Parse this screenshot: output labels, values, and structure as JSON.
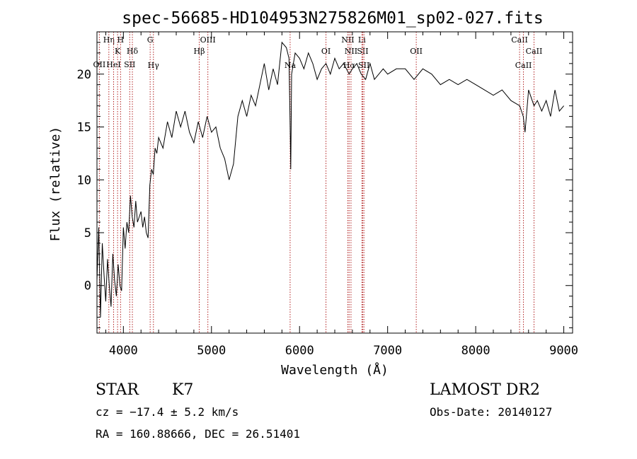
{
  "chart_data": {
    "type": "line",
    "title": "spec-56685-HD104953N275826M01_sp02-027.fits",
    "xlabel": "Wavelength (Å)",
    "ylabel": "Flux (relative)",
    "xlim": [
      3700,
      9100
    ],
    "ylim": [
      -4.5,
      24
    ],
    "xticks": [
      "4000",
      "5000",
      "6000",
      "7000",
      "8000",
      "9000"
    ],
    "xtick_values": [
      4000,
      5000,
      6000,
      7000,
      8000,
      9000
    ],
    "yticks": [
      "0",
      "5",
      "10",
      "15",
      "20"
    ],
    "ytick_values": [
      0,
      5,
      10,
      15,
      20
    ],
    "grid": false,
    "series": [
      {
        "color": "#000000",
        "x": [
          3700,
          3720,
          3740,
          3760,
          3780,
          3800,
          3820,
          3840,
          3860,
          3880,
          3900,
          3920,
          3940,
          3960,
          3980,
          4000,
          4020,
          4040,
          4060,
          4080,
          4100,
          4120,
          4140,
          4160,
          4180,
          4200,
          4220,
          4240,
          4260,
          4280,
          4300,
          4320,
          4340,
          4360,
          4380,
          4400,
          4450,
          4500,
          4550,
          4600,
          4650,
          4700,
          4750,
          4800,
          4850,
          4900,
          4950,
          5000,
          5050,
          5100,
          5150,
          5200,
          5250,
          5300,
          5350,
          5400,
          5450,
          5500,
          5550,
          5600,
          5650,
          5700,
          5750,
          5800,
          5850,
          5880,
          5895,
          5900,
          5910,
          5950,
          6000,
          6050,
          6100,
          6150,
          6200,
          6250,
          6300,
          6350,
          6400,
          6450,
          6500,
          6563,
          6600,
          6650,
          6700,
          6750,
          6800,
          6850,
          6900,
          6950,
          7000,
          7100,
          7200,
          7300,
          7400,
          7500,
          7600,
          7700,
          7800,
          7900,
          8000,
          8100,
          8200,
          8300,
          8400,
          8500,
          8540,
          8560,
          8600,
          8662,
          8700,
          8750,
          8800,
          8850,
          8900,
          8950,
          9000
        ],
        "y": [
          0.5,
          5.5,
          -3,
          4,
          1,
          -1.5,
          2.5,
          0,
          -2,
          3,
          0.5,
          -1,
          2,
          0,
          -0.5,
          5.5,
          3.5,
          6,
          5,
          8.5,
          6.5,
          5.5,
          8,
          6,
          6.5,
          7,
          5.5,
          6.5,
          5,
          4.5,
          9.5,
          11,
          10.5,
          13,
          12.5,
          14,
          13,
          15.5,
          14,
          16.5,
          15,
          16.5,
          14.5,
          13.5,
          15.5,
          14,
          16,
          14.5,
          15,
          13,
          12,
          10,
          11.5,
          16,
          17.5,
          16,
          18,
          17,
          19,
          21,
          18.5,
          20.5,
          19,
          23,
          22.5,
          21.5,
          14,
          11,
          20,
          22,
          21.5,
          20.5,
          22,
          21,
          19.5,
          20.5,
          21,
          20,
          21.5,
          20.5,
          21,
          20,
          20.5,
          21,
          20,
          19.5,
          21,
          19.5,
          20,
          20.5,
          20,
          20.5,
          20.5,
          19.5,
          20.5,
          20,
          19,
          19.5,
          19,
          19.5,
          19,
          18.5,
          18,
          18.5,
          17.5,
          17,
          16,
          14.5,
          18.5,
          17,
          17.5,
          16.5,
          17.5,
          16,
          18.5,
          16.5,
          17
        ]
      }
    ],
    "lines": [
      {
        "label": "OII",
        "x": 3727,
        "row": 3
      },
      {
        "label": "Hη",
        "x": 3835,
        "row": 1
      },
      {
        "label": "HeI",
        "x": 3889,
        "row": 3
      },
      {
        "label": "K",
        "x": 3934,
        "row": 2
      },
      {
        "label": "H",
        "x": 3968,
        "row": 1
      },
      {
        "label": "SII",
        "x": 4072,
        "row": 3
      },
      {
        "label": "Hδ",
        "x": 4102,
        "row": 2
      },
      {
        "label": "G",
        "x": 4304,
        "row": 1
      },
      {
        "label": "Hγ",
        "x": 4341,
        "row": 4
      },
      {
        "label": "Hβ",
        "x": 4861,
        "row": 2
      },
      {
        "label": "OIII",
        "x": 4959,
        "row": 1
      },
      {
        "label": "Na",
        "x": 5893,
        "row": 4
      },
      {
        "label": "OI",
        "x": 6300,
        "row": 2
      },
      {
        "label": "NII",
        "x": 6548,
        "row": 1
      },
      {
        "label": "Hα",
        "x": 6563,
        "row": 4
      },
      {
        "label": "NII",
        "x": 6584,
        "row": 2
      },
      {
        "label": "Li",
        "x": 6708,
        "row": 1
      },
      {
        "label": "SII",
        "x": 6717,
        "row": 2
      },
      {
        "label": "SII",
        "x": 6731,
        "row": 4
      },
      {
        "label": "OII",
        "x": 7325,
        "row": 2
      },
      {
        "label": "CaII",
        "x": 8498,
        "row": 1
      },
      {
        "label": "CaII",
        "x": 8542,
        "row": 4
      },
      {
        "label": "CaII",
        "x": 8662,
        "row": 2
      }
    ]
  },
  "info": {
    "object_type": "STAR",
    "subclass": "K7",
    "survey": "LAMOST DR2",
    "velocity": "cz = −17.4 ± 5.2 km/s",
    "obs_date": "Obs-Date: 20140127",
    "coords": "RA = 160.88666, DEC =  26.51401"
  }
}
